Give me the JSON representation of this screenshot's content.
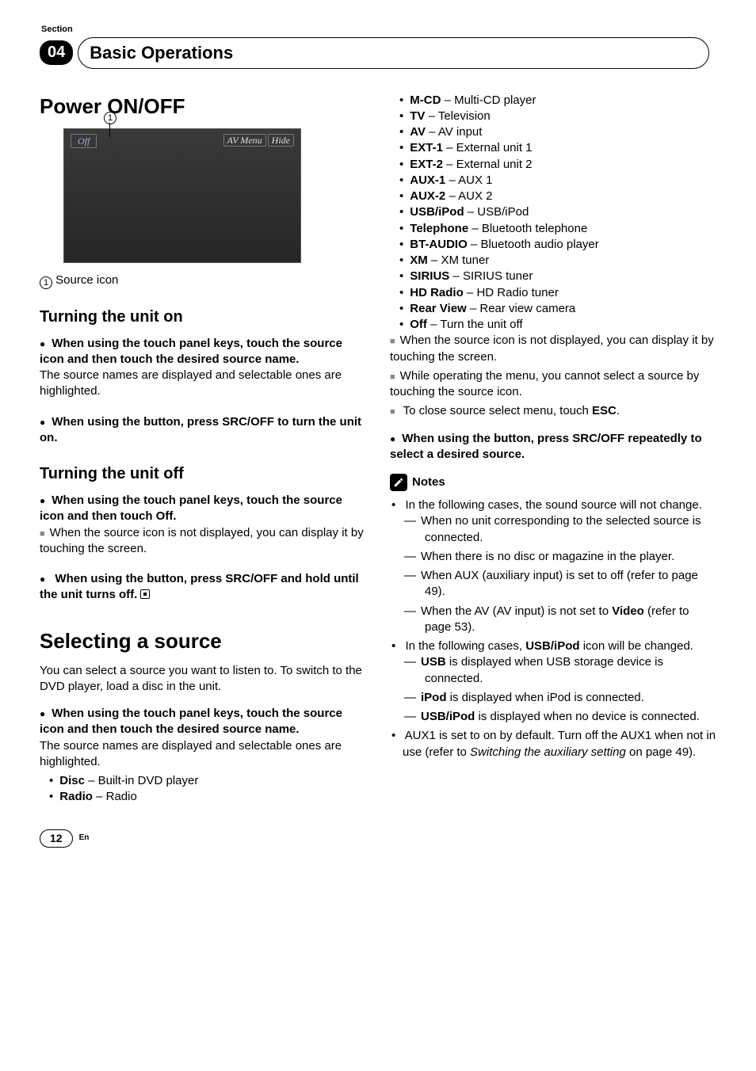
{
  "header": {
    "sectionLabel": "Section",
    "sectionNumber": "04",
    "chapterTitle": "Basic Operations"
  },
  "left": {
    "h1": "Power ON/OFF",
    "screenshot": {
      "pointer": "1",
      "offLabel": "Off",
      "avMenu": "AV Menu",
      "hide": "Hide"
    },
    "caption": {
      "num": "1",
      "text": " Source icon"
    },
    "h2a": "Turning the unit on",
    "p1": "When using the touch panel keys, touch the source icon and then touch the desired source name.",
    "p1b": "The source names are displayed and selectable ones are highlighted.",
    "p2": "When using the button, press SRC/OFF to turn the unit on.",
    "h2b": "Turning the unit off",
    "p3": "When using the touch panel keys, touch the source icon and then touch Off.",
    "p3n": "When the source icon is not displayed, you can display it by touching the screen.",
    "p4": "When using the button, press SRC/OFF and hold until the unit turns off.",
    "h1b": "Selecting a source",
    "p5": "You can select a source you want to listen to. To switch to the DVD player, load a disc in the unit.",
    "p6": "When using the touch panel keys, touch the source icon and then touch the desired source name.",
    "p6b": "The source names are displayed and selectable ones are highlighted.",
    "srcA": [
      {
        "b": "Disc",
        "d": " – Built-in DVD player"
      },
      {
        "b": "Radio",
        "d": " – Radio"
      }
    ]
  },
  "right": {
    "srcB": [
      {
        "b": "M-CD",
        "d": " – Multi-CD player"
      },
      {
        "b": "TV",
        "d": " – Television"
      },
      {
        "b": "AV",
        "d": " – AV input"
      },
      {
        "b": "EXT-1",
        "d": " – External unit 1"
      },
      {
        "b": "EXT-2",
        "d": " – External unit 2"
      },
      {
        "b": "AUX-1",
        "d": " – AUX 1"
      },
      {
        "b": "AUX-2",
        "d": " – AUX 2"
      },
      {
        "b": "USB/iPod",
        "d": " – USB/iPod"
      },
      {
        "b": "Telephone",
        "d": " – Bluetooth telephone"
      },
      {
        "b": "BT-AUDIO",
        "d": " – Bluetooth audio player"
      },
      {
        "b": "XM",
        "d": " – XM tuner"
      },
      {
        "b": "SIRIUS",
        "d": " – SIRIUS tuner"
      },
      {
        "b": "HD Radio",
        "d": " – HD Radio tuner"
      },
      {
        "b": "Rear View",
        "d": " – Rear view camera"
      },
      {
        "b": "Off",
        "d": " – Turn the unit off"
      }
    ],
    "n1": "When the source icon is not displayed, you can display it by touching the screen.",
    "n2": "While operating the menu, you cannot select a source by touching the source icon.",
    "n3a": "To close source select menu, touch ",
    "n3b": "ESC",
    "n3c": ".",
    "p7": "When using the button, press SRC/OFF repeatedly to select a desired source.",
    "notesTitle": "Notes",
    "note1": "In the following cases, the sound source will not change.",
    "note1dash": [
      "When no unit corresponding to the selected source is connected.",
      "When there is no disc or magazine in the player.",
      "When AUX (auxiliary input) is set to off (refer to page 49)."
    ],
    "note1d4a": "When the AV (AV input) is not set to ",
    "note1d4b": "Video",
    "note1d4c": " (refer to page 53).",
    "note2a": "In the following cases, ",
    "note2b": "USB/iPod",
    "note2c": " icon will be changed.",
    "note2dash": [
      {
        "b": "USB",
        "t": " is displayed when USB storage device is connected."
      },
      {
        "b": "iPod",
        "t": " is displayed when iPod is connected."
      },
      {
        "b": "USB/iPod",
        "t": " is displayed when no device is connected."
      }
    ],
    "note3a": "AUX1 is set to on by default. Turn off the AUX1 when not in use (refer to ",
    "note3b": "Switching the auxiliary setting",
    "note3c": " on page 49)."
  },
  "footer": {
    "page": "12",
    "lang": "En"
  }
}
